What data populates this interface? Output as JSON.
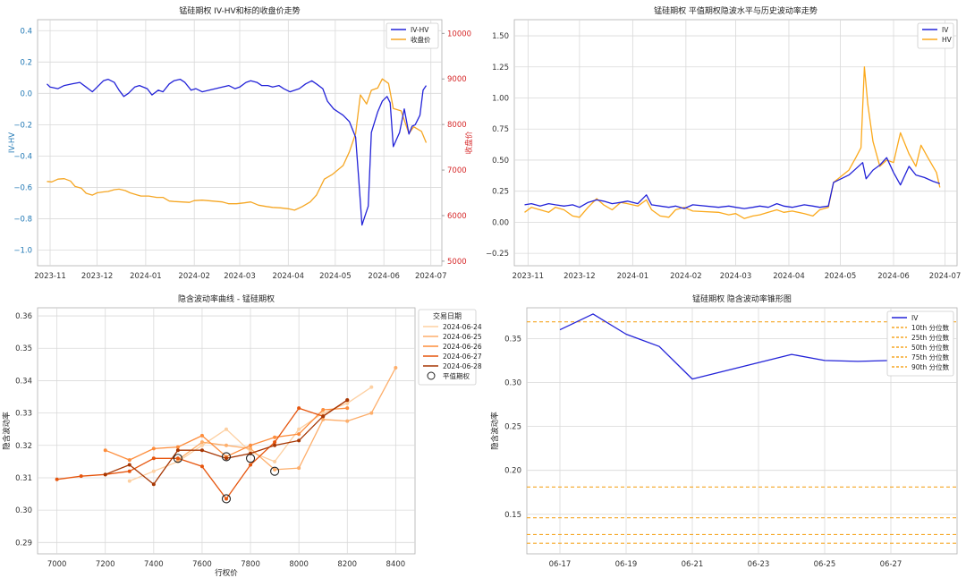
{
  "colors": {
    "iv": "#2323d8",
    "hv": "#fba91c",
    "close": "#f5a623",
    "red": "#d62728",
    "blue_axis": "#1f77b4",
    "grid": "#d9d9d9"
  },
  "chart_data": [
    {
      "type": "line",
      "title": "锰硅期权 IV-HV和标的收盘价走势",
      "ylabel": "IV-HV",
      "y2label": "收盘价",
      "ylim": [
        -1.1,
        0.47
      ],
      "y2lim": [
        4900,
        10300
      ],
      "yticks": [
        -1.0,
        -0.8,
        -0.6,
        -0.4,
        -0.2,
        0.0,
        0.2,
        0.4
      ],
      "ytick_labels": [
        "−1.0",
        "−0.8",
        "−0.6",
        "−0.4",
        "−0.2",
        "0.0",
        "0.2",
        "0.4"
      ],
      "y2ticks": [
        5000,
        6000,
        7000,
        8000,
        9000,
        10000
      ],
      "y2tick_labels": [
        "5000",
        "6000",
        "7000",
        "8000",
        "9000",
        "10000"
      ],
      "xlim": [
        "2023-10-24",
        "2024-07-08"
      ],
      "xticks": [
        "2023-11-01",
        "2023-12-01",
        "2024-01-01",
        "2024-02-01",
        "2024-03-01",
        "2024-04-01",
        "2024-05-01",
        "2024-06-01",
        "2024-07-01"
      ],
      "xtick_labels": [
        "2023-11",
        "2023-12",
        "2024-01",
        "2024-02",
        "2024-03",
        "2024-04",
        "2024-05",
        "2024-06",
        "2024-07"
      ],
      "legend": "top-right",
      "grid": true,
      "series": [
        {
          "name": "IV-HV",
          "axis": "left",
          "color": "#2323d8",
          "x": [
            "2023-10-30",
            "2023-11-01",
            "2023-11-06",
            "2023-11-10",
            "2023-11-15",
            "2023-11-20",
            "2023-11-24",
            "2023-11-28",
            "2023-12-01",
            "2023-12-05",
            "2023-12-08",
            "2023-12-12",
            "2023-12-15",
            "2023-12-18",
            "2023-12-21",
            "2023-12-25",
            "2023-12-28",
            "2024-01-02",
            "2024-01-05",
            "2024-01-09",
            "2024-01-12",
            "2024-01-16",
            "2024-01-19",
            "2024-01-23",
            "2024-01-26",
            "2024-01-30",
            "2024-02-02",
            "2024-02-06",
            "2024-02-19",
            "2024-02-23",
            "2024-02-27",
            "2024-03-01",
            "2024-03-05",
            "2024-03-08",
            "2024-03-12",
            "2024-03-15",
            "2024-03-19",
            "2024-03-22",
            "2024-03-26",
            "2024-03-29",
            "2024-04-02",
            "2024-04-08",
            "2024-04-12",
            "2024-04-16",
            "2024-04-19",
            "2024-04-23",
            "2024-04-26",
            "2024-04-30",
            "2024-05-06",
            "2024-05-10",
            "2024-05-14",
            "2024-05-16",
            "2024-05-18",
            "2024-05-20",
            "2024-05-22",
            "2024-05-24",
            "2024-05-28",
            "2024-05-31",
            "2024-06-03",
            "2024-06-05",
            "2024-06-07",
            "2024-06-11",
            "2024-06-14",
            "2024-06-17",
            "2024-06-19",
            "2024-06-21",
            "2024-06-24",
            "2024-06-26",
            "2024-06-28"
          ],
          "y": [
            0.06,
            0.04,
            0.03,
            0.05,
            0.06,
            0.07,
            0.04,
            0.01,
            0.04,
            0.08,
            0.09,
            0.07,
            0.02,
            -0.02,
            0.0,
            0.04,
            0.05,
            0.03,
            -0.01,
            0.02,
            0.01,
            0.06,
            0.08,
            0.09,
            0.07,
            0.02,
            0.03,
            0.01,
            0.04,
            0.05,
            0.03,
            0.04,
            0.07,
            0.08,
            0.07,
            0.05,
            0.05,
            0.04,
            0.05,
            0.03,
            0.01,
            0.03,
            0.06,
            0.08,
            0.06,
            0.03,
            -0.05,
            -0.1,
            -0.14,
            -0.18,
            -0.28,
            -0.55,
            -0.84,
            -0.78,
            -0.72,
            -0.25,
            -0.12,
            -0.05,
            -0.02,
            -0.06,
            -0.34,
            -0.25,
            -0.1,
            -0.26,
            -0.21,
            -0.2,
            -0.14,
            0.02,
            0.05
          ]
        },
        {
          "name": "收盘价",
          "axis": "right",
          "color": "#f5a623",
          "x": [
            "2023-10-30",
            "2023-11-02",
            "2023-11-06",
            "2023-11-10",
            "2023-11-14",
            "2023-11-17",
            "2023-11-21",
            "2023-11-24",
            "2023-11-28",
            "2023-12-01",
            "2023-12-05",
            "2023-12-08",
            "2023-12-12",
            "2023-12-15",
            "2023-12-19",
            "2023-12-22",
            "2023-12-26",
            "2023-12-29",
            "2024-01-03",
            "2024-01-08",
            "2024-01-12",
            "2024-01-16",
            "2024-01-19",
            "2024-01-24",
            "2024-01-29",
            "2024-02-01",
            "2024-02-06",
            "2024-02-19",
            "2024-02-23",
            "2024-02-28",
            "2024-03-04",
            "2024-03-08",
            "2024-03-13",
            "2024-03-18",
            "2024-03-22",
            "2024-03-27",
            "2024-04-01",
            "2024-04-05",
            "2024-04-10",
            "2024-04-15",
            "2024-04-19",
            "2024-04-24",
            "2024-04-29",
            "2024-05-06",
            "2024-05-10",
            "2024-05-14",
            "2024-05-17",
            "2024-05-21",
            "2024-05-24",
            "2024-05-28",
            "2024-05-31",
            "2024-06-04",
            "2024-06-07",
            "2024-06-12",
            "2024-06-17",
            "2024-06-20",
            "2024-06-25",
            "2024-06-28"
          ],
          "y": [
            6750,
            6740,
            6800,
            6810,
            6760,
            6640,
            6600,
            6490,
            6450,
            6500,
            6520,
            6530,
            6570,
            6580,
            6550,
            6500,
            6460,
            6430,
            6430,
            6400,
            6400,
            6320,
            6310,
            6300,
            6290,
            6330,
            6340,
            6300,
            6260,
            6260,
            6280,
            6300,
            6230,
            6200,
            6180,
            6170,
            6150,
            6120,
            6200,
            6300,
            6450,
            6800,
            6900,
            7100,
            7400,
            7800,
            8650,
            8450,
            8750,
            8800,
            9000,
            8900,
            8350,
            8300,
            7800,
            7950,
            7850,
            7600
          ]
        }
      ]
    },
    {
      "type": "line",
      "title": "锰硅期权 平值期权隐波水平与历史波动率走势",
      "ylim": [
        -0.35,
        1.63
      ],
      "yticks": [
        -0.25,
        0.0,
        0.25,
        0.5,
        0.75,
        1.0,
        1.25,
        1.5
      ],
      "ytick_labels": [
        "−0.25",
        "0.00",
        "0.25",
        "0.50",
        "0.75",
        "1.00",
        "1.25",
        "1.50"
      ],
      "xlim": [
        "2023-10-24",
        "2024-07-08"
      ],
      "xticks": [
        "2023-11-01",
        "2023-12-01",
        "2024-01-01",
        "2024-02-01",
        "2024-03-01",
        "2024-04-01",
        "2024-05-01",
        "2024-06-01",
        "2024-07-01"
      ],
      "xtick_labels": [
        "2023-11",
        "2023-12",
        "2024-01",
        "2024-02",
        "2024-03",
        "2024-04",
        "2024-05",
        "2024-06",
        "2024-07"
      ],
      "legend": "top-right",
      "grid": true,
      "series": [
        {
          "name": "IV",
          "color": "#2323d8",
          "x": [
            "2023-10-30",
            "2023-11-03",
            "2023-11-08",
            "2023-11-13",
            "2023-11-17",
            "2023-11-22",
            "2023-11-27",
            "2023-12-01",
            "2023-12-06",
            "2023-12-11",
            "2023-12-15",
            "2023-12-20",
            "2023-12-25",
            "2023-12-29",
            "2024-01-04",
            "2024-01-09",
            "2024-01-12",
            "2024-01-17",
            "2024-01-22",
            "2024-01-26",
            "2024-01-31",
            "2024-02-05",
            "2024-02-20",
            "2024-02-26",
            "2024-03-01",
            "2024-03-06",
            "2024-03-11",
            "2024-03-15",
            "2024-03-20",
            "2024-03-25",
            "2024-03-29",
            "2024-04-03",
            "2024-04-10",
            "2024-04-15",
            "2024-04-19",
            "2024-04-24",
            "2024-04-27",
            "2024-05-06",
            "2024-05-10",
            "2024-05-14",
            "2024-05-16",
            "2024-05-20",
            "2024-05-24",
            "2024-05-28",
            "2024-06-01",
            "2024-06-05",
            "2024-06-10",
            "2024-06-14",
            "2024-06-19",
            "2024-06-24",
            "2024-06-28"
          ],
          "y": [
            0.14,
            0.15,
            0.13,
            0.15,
            0.14,
            0.13,
            0.14,
            0.12,
            0.16,
            0.18,
            0.17,
            0.15,
            0.16,
            0.17,
            0.15,
            0.22,
            0.14,
            0.13,
            0.12,
            0.13,
            0.11,
            0.14,
            0.12,
            0.13,
            0.12,
            0.11,
            0.12,
            0.13,
            0.12,
            0.15,
            0.13,
            0.12,
            0.14,
            0.13,
            0.12,
            0.13,
            0.32,
            0.38,
            0.43,
            0.48,
            0.35,
            0.42,
            0.46,
            0.52,
            0.4,
            0.3,
            0.45,
            0.38,
            0.36,
            0.33,
            0.31
          ]
        },
        {
          "name": "HV",
          "color": "#fba91c",
          "x": [
            "2023-10-30",
            "2023-11-03",
            "2023-11-08",
            "2023-11-13",
            "2023-11-17",
            "2023-11-22",
            "2023-11-27",
            "2023-12-01",
            "2023-12-06",
            "2023-12-11",
            "2023-12-15",
            "2023-12-20",
            "2023-12-25",
            "2023-12-29",
            "2024-01-04",
            "2024-01-09",
            "2024-01-12",
            "2024-01-17",
            "2024-01-22",
            "2024-01-26",
            "2024-01-31",
            "2024-02-05",
            "2024-02-20",
            "2024-02-26",
            "2024-03-01",
            "2024-03-06",
            "2024-03-11",
            "2024-03-15",
            "2024-03-20",
            "2024-03-25",
            "2024-03-29",
            "2024-04-03",
            "2024-04-10",
            "2024-04-15",
            "2024-04-19",
            "2024-04-24",
            "2024-04-27",
            "2024-05-06",
            "2024-05-10",
            "2024-05-13",
            "2024-05-15",
            "2024-05-17",
            "2024-05-20",
            "2024-05-24",
            "2024-05-28",
            "2024-06-01",
            "2024-06-05",
            "2024-06-10",
            "2024-06-14",
            "2024-06-17",
            "2024-06-21",
            "2024-06-26",
            "2024-06-28"
          ],
          "y": [
            0.08,
            0.12,
            0.1,
            0.08,
            0.12,
            0.1,
            0.05,
            0.04,
            0.12,
            0.19,
            0.14,
            0.1,
            0.16,
            0.15,
            0.13,
            0.18,
            0.1,
            0.05,
            0.04,
            0.1,
            0.12,
            0.09,
            0.08,
            0.06,
            0.07,
            0.03,
            0.05,
            0.06,
            0.08,
            0.1,
            0.08,
            0.09,
            0.07,
            0.05,
            0.1,
            0.12,
            0.32,
            0.42,
            0.52,
            0.6,
            1.25,
            0.95,
            0.65,
            0.45,
            0.5,
            0.48,
            0.72,
            0.55,
            0.45,
            0.62,
            0.52,
            0.4,
            0.28
          ]
        }
      ]
    },
    {
      "type": "line",
      "title": "隐含波动率曲线 - 锰硅期权",
      "xlabel": "行权价",
      "ylabel": "隐含波动率",
      "xlim": [
        6920,
        8480
      ],
      "ylim": [
        0.2865,
        0.3625
      ],
      "xticks": [
        7000,
        7200,
        7400,
        7600,
        7800,
        8000,
        8200,
        8400
      ],
      "xtick_labels": [
        "7000",
        "7200",
        "7400",
        "7600",
        "7800",
        "8000",
        "8200",
        "8400"
      ],
      "yticks": [
        0.29,
        0.3,
        0.31,
        0.32,
        0.33,
        0.34,
        0.35,
        0.36
      ],
      "ytick_labels": [
        "0.29",
        "0.30",
        "0.31",
        "0.32",
        "0.33",
        "0.34",
        "0.35",
        "0.36"
      ],
      "legend_title": "交易日期",
      "legend": "top-right",
      "grid": true,
      "series": [
        {
          "name": "2024-06-24",
          "color": "#fdd0a2",
          "x": [
            7300,
            7400,
            7500,
            7600,
            7700,
            7800,
            7900,
            8000,
            8100,
            8200,
            8300
          ],
          "y": [
            0.309,
            0.312,
            0.315,
            0.32,
            0.325,
            0.318,
            0.315,
            0.325,
            0.33,
            0.333,
            0.338
          ]
        },
        {
          "name": "2024-06-25",
          "color": "#fdae6b",
          "x": [
            7500,
            7600,
            7700,
            7800,
            7900,
            8000,
            8100,
            8200,
            8300,
            8400
          ],
          "y": [
            0.3155,
            0.321,
            0.32,
            0.319,
            0.3125,
            0.313,
            0.328,
            0.3275,
            0.33,
            0.344
          ]
        },
        {
          "name": "2024-06-26",
          "color": "#fd8d3c",
          "x": [
            7200,
            7300,
            7400,
            7500,
            7600,
            7700,
            7800,
            7900,
            8000,
            8100,
            8200
          ],
          "y": [
            0.3185,
            0.3155,
            0.319,
            0.3195,
            0.323,
            0.3165,
            0.32,
            0.3225,
            0.3235,
            0.331,
            0.3315
          ]
        },
        {
          "name": "2024-06-27",
          "color": "#e6550d",
          "x": [
            7000,
            7100,
            7200,
            7300,
            7400,
            7500,
            7600,
            7700,
            7800,
            7900,
            8000,
            8100,
            8200
          ],
          "y": [
            0.3095,
            0.3105,
            0.311,
            0.312,
            0.316,
            0.316,
            0.3135,
            0.3035,
            0.314,
            0.321,
            0.3315,
            0.329,
            0.334
          ]
        },
        {
          "name": "2024-06-28",
          "color": "#a63603",
          "x": [
            7200,
            7300,
            7400,
            7500,
            7600,
            7700,
            7800,
            7900,
            8000,
            8100,
            8200
          ],
          "y": [
            0.311,
            0.314,
            0.308,
            0.3185,
            0.3185,
            0.316,
            0.3175,
            0.32,
            0.3215,
            0.329,
            0.334
          ]
        }
      ],
      "markers": {
        "name": "平值期权",
        "points": [
          {
            "x": 7500,
            "y": 0.316
          },
          {
            "x": 7700,
            "y": 0.3035
          },
          {
            "x": 7700,
            "y": 0.3165
          },
          {
            "x": 7800,
            "y": 0.316
          },
          {
            "x": 7900,
            "y": 0.312
          }
        ]
      }
    },
    {
      "type": "line",
      "title": "锰硅期权 隐含波动率锥形图",
      "ylabel": "隐含波动率",
      "xlim": [
        "2024-06-16",
        "2024-06-29"
      ],
      "ylim": [
        0.105,
        0.385
      ],
      "yticks": [
        0.15,
        0.2,
        0.25,
        0.3,
        0.35
      ],
      "ytick_labels": [
        "0.15",
        "0.20",
        "0.25",
        "0.30",
        "0.35"
      ],
      "xticks": [
        "2024-06-17",
        "2024-06-19",
        "2024-06-21",
        "2024-06-23",
        "2024-06-25",
        "2024-06-27"
      ],
      "xtick_labels": [
        "06-17",
        "06-19",
        "06-21",
        "06-23",
        "06-25",
        "06-27"
      ],
      "legend": "top-right",
      "grid": true,
      "series": [
        {
          "name": "IV",
          "color": "#2323d8",
          "x": [
            "2024-06-17",
            "2024-06-18",
            "2024-06-19",
            "2024-06-20",
            "2024-06-21",
            "2024-06-24",
            "2024-06-25",
            "2024-06-26",
            "2024-06-27",
            "2024-06-28"
          ],
          "y": [
            0.36,
            0.378,
            0.355,
            0.341,
            0.304,
            0.332,
            0.325,
            0.324,
            0.325,
            0.31
          ]
        }
      ],
      "percentiles": [
        {
          "name": "10th 分位数",
          "value": 0.117
        },
        {
          "name": "25th 分位数",
          "value": 0.127
        },
        {
          "name": "50th 分位数",
          "value": 0.146
        },
        {
          "name": "75th 分位数",
          "value": 0.181
        },
        {
          "name": "90th 分位数",
          "value": 0.369
        }
      ]
    }
  ]
}
